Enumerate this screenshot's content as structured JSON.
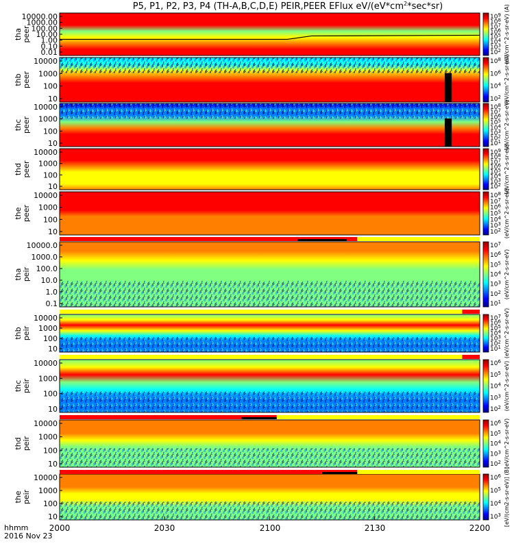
{
  "chart_data": {
    "type": "heatmap",
    "title": "P5, P1, P2, P3, P4 (TH-A,B,C,D,E) PEIR,PEER EFlux eV/(eV*cm",
    "title_sup": "2",
    "title_end": "*sec*sr)",
    "x_axis": {
      "ticks": [
        "2000",
        "2030",
        "2100",
        "2130",
        "2200"
      ],
      "label_line1": "hhmm",
      "label_line2": "2016 Nov 23"
    },
    "colors": {
      "scale": [
        "#000090",
        "#0000ff",
        "#0080ff",
        "#00ffff",
        "#80ff80",
        "#ffff00",
        "#ff8000",
        "#ff0000",
        "#900000"
      ],
      "flag_red": "#ff0000",
      "flag_yellow": "#ffff00",
      "flag_black": "#000000"
    },
    "panels": [
      {
        "probe": "tha",
        "species": "peer",
        "yticks": [
          "10000.00",
          "1000.00",
          "100.00",
          "10.00",
          "1.00",
          "0.10",
          "0.01"
        ],
        "cbar_ticks": [
          "10^9",
          "10^8",
          "10^7",
          "10^6",
          "10^5",
          "10^4",
          "10^3",
          "10^2"
        ],
        "cbar_label": "(eV/cm^2-s-sr-eV) (A)",
        "texture": "smooth",
        "levels": [
          0.92,
          0.92,
          0.9,
          0.55,
          0.62,
          0.75,
          0.82,
          0.9
        ],
        "black_gaps": [],
        "potential_line": true,
        "flag": null
      },
      {
        "probe": "thb",
        "species": "peer",
        "yticks": [
          "10000",
          "1000",
          "100",
          "10"
        ],
        "cbar_ticks": [
          "10^8",
          "10^6",
          "10^4",
          "10^2"
        ],
        "cbar_label": "(eV/cm^2-s-sr-eV)",
        "texture": "noisy-top",
        "levels": [
          0.35,
          0.4,
          0.6,
          0.75,
          0.85,
          0.88,
          0.9,
          0.92
        ],
        "black_gaps": [
          [
            2150,
            2152
          ]
        ],
        "potential_line": false,
        "flag": null
      },
      {
        "probe": "thc",
        "species": "peer",
        "yticks": [
          "10000",
          "1000",
          "100",
          "10"
        ],
        "cbar_ticks": [
          "10^8",
          "10^7",
          "10^6",
          "10^5",
          "10^4",
          "10^3",
          "10^2",
          "10^1"
        ],
        "cbar_label": "(eV/cm^2-s-sr-eV)",
        "texture": "noisy-top",
        "levels": [
          0.15,
          0.2,
          0.3,
          0.5,
          0.78,
          0.88,
          0.9,
          0.92
        ],
        "black_gaps": [
          [
            2150,
            2152
          ]
        ],
        "potential_line": false,
        "flag": null
      },
      {
        "probe": "thd",
        "species": "peer",
        "yticks": [
          "10000",
          "1000",
          "100",
          "10"
        ],
        "cbar_ticks": [
          "10^9",
          "10^8",
          "10^7",
          "10^6",
          "10^5",
          "10^4",
          "10^3",
          "10^2"
        ],
        "cbar_label": "(eV/cm^2-s-sr-eV)",
        "texture": "smooth",
        "levels": [
          0.86,
          0.85,
          0.82,
          0.75,
          0.65,
          0.6,
          0.62,
          0.75
        ],
        "black_gaps": [],
        "potential_line": false,
        "flag": null
      },
      {
        "probe": "the",
        "species": "peer",
        "yticks": [
          "10000",
          "1000",
          "100",
          "10"
        ],
        "cbar_ticks": [
          "10^8",
          "10^7",
          "10^6",
          "10^5",
          "10^4",
          "10^3",
          "10^2"
        ],
        "cbar_label": "(eV/cm^2-s-sr-eV)",
        "texture": "smooth",
        "levels": [
          0.9,
          0.9,
          0.88,
          0.84,
          0.8,
          0.78,
          0.76,
          0.78
        ],
        "black_gaps": [],
        "potential_line": false,
        "flag": null
      },
      {
        "probe": "tha",
        "species": "peir",
        "yticks": [
          "10000.0",
          "1000.0",
          "100.0",
          "10.0",
          "1.0",
          "0.1"
        ],
        "cbar_ticks": [
          "10^7",
          "10^6",
          "10^5",
          "10^4",
          "10^3",
          "10^2",
          "10^1"
        ],
        "cbar_label": "(eV/cm^2-s-sr-eV)",
        "texture": "noisy-bottom",
        "levels": [
          0.8,
          0.72,
          0.6,
          0.5,
          0.45,
          0.45,
          0.45,
          0.45
        ],
        "black_gaps": [],
        "potential_line": false,
        "flag": {
          "red": [
            [
              2000,
              2085
            ]
          ],
          "black": [
            [
              2068,
              2082
            ]
          ],
          "yellow": [
            [
              2085,
              2200
            ]
          ]
        }
      },
      {
        "probe": "thb",
        "species": "peir",
        "yticks": [
          "10000",
          "1000",
          "100",
          "10"
        ],
        "cbar_ticks": [
          "10^7",
          "10^6",
          "10^5",
          "10^4",
          "10^3",
          "10^2",
          "10^1"
        ],
        "cbar_label": "(eV/cm^2-s-sr-eV)",
        "texture": "noisy-bottom",
        "levels": [
          0.5,
          0.62,
          0.85,
          0.6,
          0.4,
          0.3,
          0.25,
          0.25
        ],
        "black_gaps": [],
        "potential_line": false,
        "flag": {
          "red": [
            [
              2155,
              2200
            ]
          ],
          "black": [],
          "yellow": [
            [
              2000,
              2155
            ]
          ]
        }
      },
      {
        "probe": "thc",
        "species": "peir",
        "yticks": [
          "10000",
          "1000",
          "100",
          "10"
        ],
        "cbar_ticks": [
          "10^6",
          "10^5",
          "10^4",
          "10^3",
          "10^2"
        ],
        "cbar_label": "(eV/cm^2-s-sr-eV)",
        "texture": "noisy-bottom",
        "levels": [
          0.5,
          0.6,
          0.82,
          0.55,
          0.35,
          0.28,
          0.25,
          0.25
        ],
        "black_gaps": [],
        "potential_line": false,
        "flag": {
          "red": [
            [
              2155,
              2200
            ]
          ],
          "black": [],
          "yellow": [
            [
              2000,
              2155
            ]
          ]
        }
      },
      {
        "probe": "thd",
        "species": "peir",
        "yticks": [
          "10000",
          "1000",
          "100",
          "10"
        ],
        "cbar_ticks": [
          "10^6",
          "10^5",
          "10^4",
          "10^3",
          "10^2"
        ],
        "cbar_label": "(eV/cm^2-s-sr-eV)",
        "texture": "noisy-bottom",
        "levels": [
          0.8,
          0.75,
          0.7,
          0.62,
          0.55,
          0.5,
          0.48,
          0.45
        ],
        "black_gaps": [],
        "potential_line": false,
        "flag": {
          "red": [
            [
              2000,
              2062
            ]
          ],
          "black": [
            [
              2052,
              2062
            ]
          ],
          "yellow": [
            [
              2062,
              2200
            ]
          ]
        }
      },
      {
        "probe": "the",
        "species": "peir",
        "yticks": [
          "10000",
          "1000",
          "100",
          "10"
        ],
        "cbar_ticks": [
          "10^6",
          "10^5",
          "10^4",
          "10^3"
        ],
        "cbar_label": "[eV/(cm2-s-sr-eV)] (B)",
        "texture": "noisy-bottom",
        "levels": [
          0.8,
          0.76,
          0.72,
          0.65,
          0.58,
          0.52,
          0.48,
          0.45
        ],
        "black_gaps": [],
        "potential_line": false,
        "flag": {
          "red": [
            [
              2000,
              2085
            ]
          ],
          "black": [
            [
              2075,
              2085
            ]
          ],
          "yellow": [
            [
              2085,
              2200
            ]
          ]
        }
      }
    ]
  }
}
